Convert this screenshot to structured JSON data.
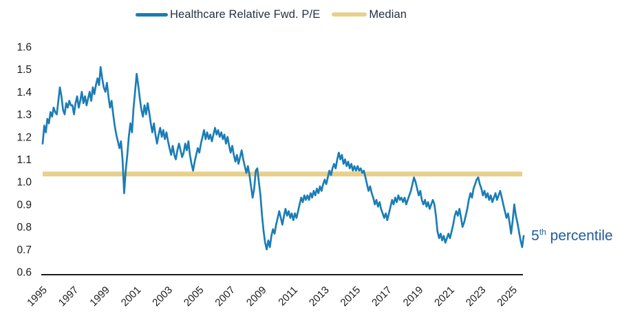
{
  "legend": {
    "items": [
      {
        "label": "Healthcare Relative Fwd. P/E",
        "color": "#1b7db5"
      },
      {
        "label": "Median",
        "color": "#e8cf8b"
      }
    ]
  },
  "annotation": {
    "prefix": "5",
    "superscript": "th",
    "suffix": " percentile",
    "color": "#1f5c97"
  },
  "chart_data": {
    "type": "line",
    "title": "",
    "xlabel": "",
    "ylabel": "",
    "xlim": [
      1995.0,
      2025.7
    ],
    "ylim": [
      0.6,
      1.6
    ],
    "grid": false,
    "legend_position": "top-center",
    "x_tick_labels": [
      "1995",
      "1997",
      "1999",
      "2001",
      "2003",
      "2005",
      "2007",
      "2009",
      "2011",
      "2013",
      "2015",
      "2017",
      "2019",
      "2021",
      "2023",
      "2025"
    ],
    "x_tick_years": [
      1995,
      1997,
      1999,
      2001,
      2003,
      2005,
      2007,
      2009,
      2011,
      2013,
      2015,
      2017,
      2019,
      2021,
      2023,
      2025
    ],
    "x_label_rotation_deg": -45,
    "y_tick_labels": [
      "1.6",
      "1.5",
      "1.4",
      "1.3",
      "1.2",
      "1.1",
      "1.0",
      "0.9",
      "0.8",
      "0.7",
      "0.6"
    ],
    "y_tick_values": [
      1.6,
      1.5,
      1.4,
      1.3,
      1.2,
      1.1,
      1.0,
      0.9,
      0.8,
      0.7,
      0.6
    ],
    "series": [
      {
        "name": "Healthcare Relative Fwd. P/E",
        "type": "line",
        "color": "#1b7db5",
        "x_start": 1995.0,
        "x_step_years": 0.1,
        "values": [
          1.17,
          1.25,
          1.22,
          1.28,
          1.26,
          1.31,
          1.29,
          1.33,
          1.31,
          1.3,
          1.36,
          1.42,
          1.38,
          1.32,
          1.3,
          1.35,
          1.33,
          1.36,
          1.34,
          1.34,
          1.3,
          1.35,
          1.38,
          1.33,
          1.36,
          1.4,
          1.35,
          1.38,
          1.34,
          1.37,
          1.4,
          1.36,
          1.42,
          1.39,
          1.43,
          1.46,
          1.43,
          1.51,
          1.46,
          1.42,
          1.4,
          1.44,
          1.38,
          1.33,
          1.36,
          1.3,
          1.25,
          1.21,
          1.18,
          1.15,
          1.18,
          1.1,
          0.95,
          1.05,
          1.12,
          1.2,
          1.26,
          1.22,
          1.33,
          1.4,
          1.48,
          1.43,
          1.37,
          1.32,
          1.29,
          1.34,
          1.3,
          1.35,
          1.31,
          1.26,
          1.22,
          1.26,
          1.21,
          1.17,
          1.21,
          1.24,
          1.2,
          1.23,
          1.19,
          1.22,
          1.18,
          1.15,
          1.12,
          1.16,
          1.12,
          1.1,
          1.14,
          1.17,
          1.14,
          1.11,
          1.13,
          1.17,
          1.14,
          1.18,
          1.12,
          1.08,
          1.05,
          1.09,
          1.12,
          1.15,
          1.13,
          1.17,
          1.2,
          1.23,
          1.19,
          1.22,
          1.19,
          1.21,
          1.18,
          1.21,
          1.24,
          1.21,
          1.23,
          1.2,
          1.22,
          1.19,
          1.21,
          1.17,
          1.2,
          1.16,
          1.13,
          1.16,
          1.12,
          1.09,
          1.12,
          1.08,
          1.11,
          1.14,
          1.1,
          1.07,
          1.04,
          1.07,
          1.03,
          0.98,
          0.93,
          0.97,
          1.05,
          1.06,
          1.0,
          0.94,
          0.85,
          0.78,
          0.73,
          0.7,
          0.74,
          0.71,
          0.76,
          0.79,
          0.77,
          0.81,
          0.84,
          0.87,
          0.84,
          0.81,
          0.85,
          0.88,
          0.85,
          0.87,
          0.84,
          0.86,
          0.83,
          0.86,
          0.84,
          0.87,
          0.9,
          0.93,
          0.91,
          0.94,
          0.92,
          0.94,
          0.92,
          0.95,
          0.93,
          0.96,
          0.94,
          0.97,
          0.95,
          0.98,
          0.96,
          0.99,
          1.01,
          0.99,
          1.02,
          1.05,
          1.03,
          1.06,
          1.08,
          1.06,
          1.1,
          1.13,
          1.1,
          1.12,
          1.08,
          1.1,
          1.07,
          1.09,
          1.06,
          1.08,
          1.05,
          1.07,
          1.05,
          1.07,
          1.05,
          1.06,
          1.04,
          1.05,
          1.02,
          0.99,
          0.96,
          0.98,
          0.95,
          0.93,
          0.9,
          0.92,
          0.89,
          0.91,
          0.88,
          0.86,
          0.84,
          0.86,
          0.83,
          0.86,
          0.89,
          0.92,
          0.9,
          0.93,
          0.91,
          0.94,
          0.92,
          0.93,
          0.91,
          0.93,
          0.9,
          0.92,
          0.94,
          0.96,
          0.99,
          1.02,
          1.0,
          0.97,
          0.94,
          0.96,
          0.92,
          0.9,
          0.92,
          0.89,
          0.91,
          0.88,
          0.9,
          0.92,
          0.9,
          0.85,
          0.78,
          0.75,
          0.77,
          0.74,
          0.76,
          0.73,
          0.75,
          0.77,
          0.75,
          0.78,
          0.81,
          0.85,
          0.87,
          0.85,
          0.88,
          0.84,
          0.8,
          0.82,
          0.85,
          0.88,
          0.92,
          0.95,
          0.93,
          0.97,
          0.99,
          1.01,
          1.02,
          0.99,
          0.97,
          0.94,
          0.96,
          0.93,
          0.95,
          0.92,
          0.94,
          0.91,
          0.93,
          0.95,
          0.92,
          0.94,
          0.96,
          0.93,
          0.9,
          0.87,
          0.84,
          0.86,
          0.82,
          0.77,
          0.83,
          0.9,
          0.85,
          0.82,
          0.78,
          0.74,
          0.71,
          0.76
        ]
      },
      {
        "name": "Median",
        "type": "hline",
        "color": "#e8cf8b",
        "value": 1.035
      }
    ],
    "annotations": [
      {
        "text": "5th percentile",
        "x": 2025.7,
        "y": 0.76,
        "color": "#1f5c97"
      }
    ]
  }
}
